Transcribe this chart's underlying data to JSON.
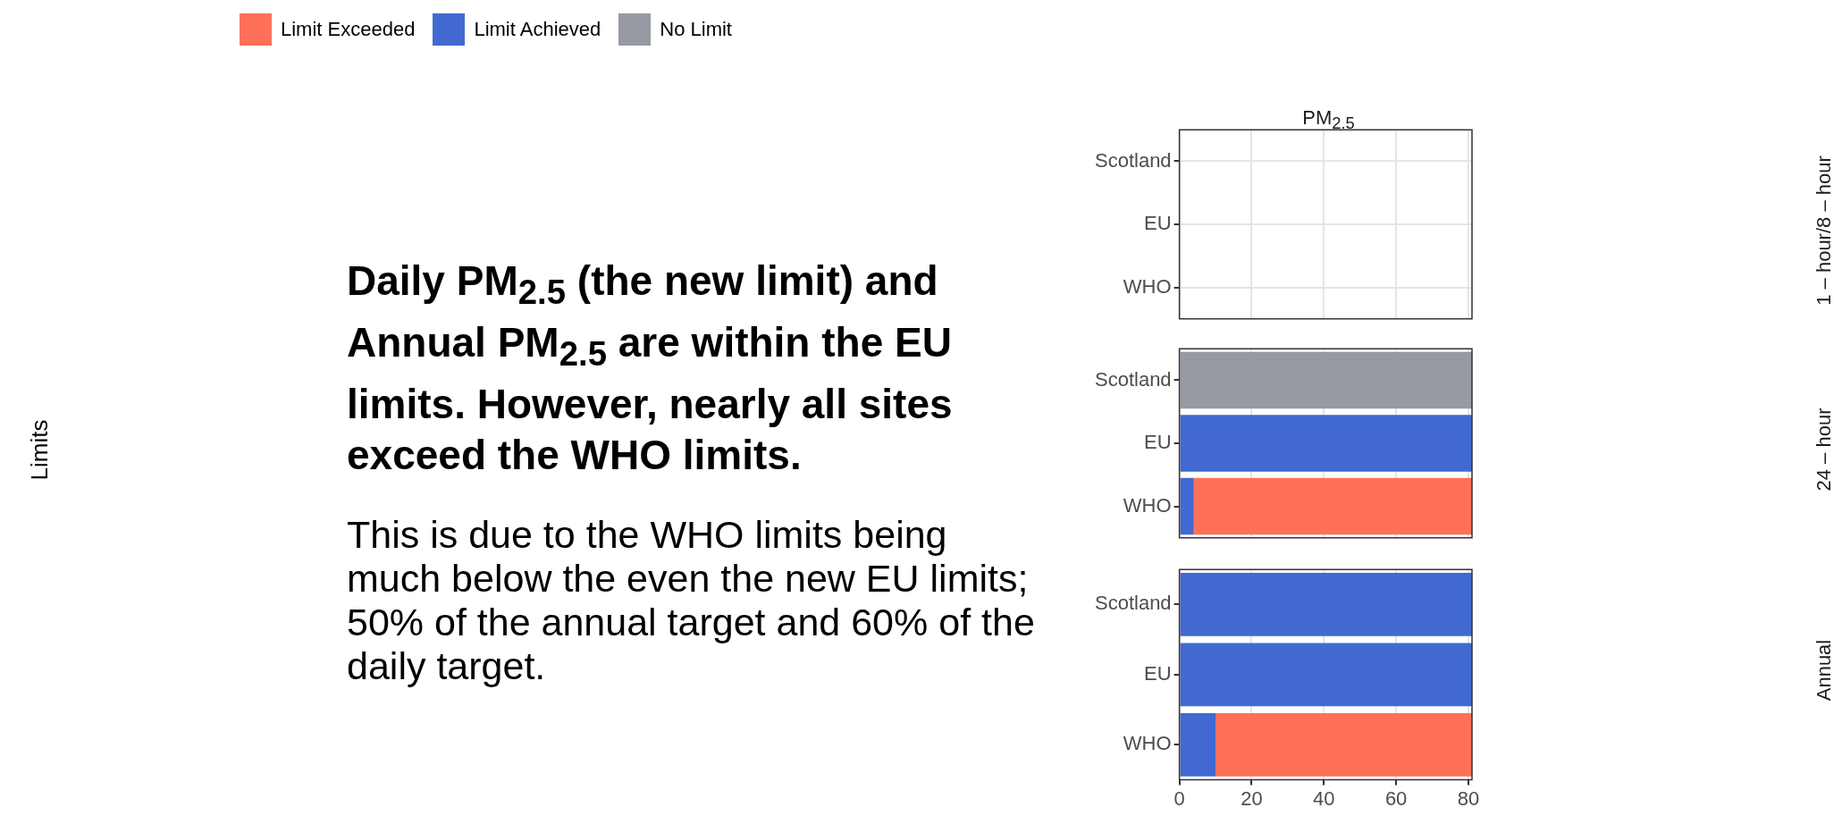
{
  "chart_data": [
    {
      "type": "bar",
      "orientation": "horizontal",
      "stacked": true,
      "title": "PM$_{2.5}$",
      "y2label": "1 – hour/8 – hour",
      "categories": [
        "Scotland",
        "EU",
        "WHO"
      ],
      "xlim": [
        0,
        81
      ],
      "xticks": [
        0,
        20,
        40,
        60,
        80
      ],
      "grid": true,
      "tick_labels": "y",
      "legend": "top left",
      "annotations": [
        "Daily PM$_{2.5}$ (the new limit) and Annual PM$_{2.5}$ are within the EU limits. However, nearly all sites exceed the WHO limits.",
        "This is due to the WHO limits being much below the even the new EU limits; 50% of the annual target and 60% of the daily target."
      ],
      "series": [
        {
          "name": "No Limit",
          "color": "#959aa3",
          "values": [
            null,
            null,
            null
          ]
        },
        {
          "name": "Limit Achieved",
          "color": "#4169d1",
          "values": [
            null,
            null,
            null
          ]
        },
        {
          "name": "Limit Exceeded",
          "color": "#ff7058",
          "values": [
            null,
            null,
            null
          ]
        }
      ]
    },
    {
      "type": "bar",
      "orientation": "horizontal",
      "stacked": true,
      "ylabel": "Limits",
      "y2label": "24 – hour",
      "categories": [
        "Scotland",
        "EU",
        "WHO"
      ],
      "xlim": [
        0,
        81
      ],
      "xticks": [
        0,
        20,
        40,
        60,
        80
      ],
      "grid": true,
      "tick_labels": "y",
      "series": [
        {
          "color": "#959aa3",
          "values": [
            81,
            null,
            null
          ]
        },
        {
          "color": "#4169d1",
          "values": [
            null,
            81,
            4
          ]
        },
        {
          "color": "#ff7058",
          "values": [
            null,
            null,
            77
          ]
        }
      ]
    },
    {
      "type": "bar",
      "orientation": "horizontal",
      "stacked": true,
      "y2label": "Annual",
      "categories": [
        "Scotland",
        "EU",
        "WHO"
      ],
      "xlim": [
        0,
        81
      ],
      "xticks": [
        0,
        20,
        40,
        60,
        80
      ],
      "grid": true,
      "series": [
        {
          "color": "#959aa3",
          "values": [
            null,
            null,
            null
          ]
        },
        {
          "color": "#4169d1",
          "values": [
            81,
            81,
            10
          ]
        },
        {
          "color": "#ff7058",
          "values": [
            null,
            null,
            71
          ]
        }
      ]
    }
  ]
}
